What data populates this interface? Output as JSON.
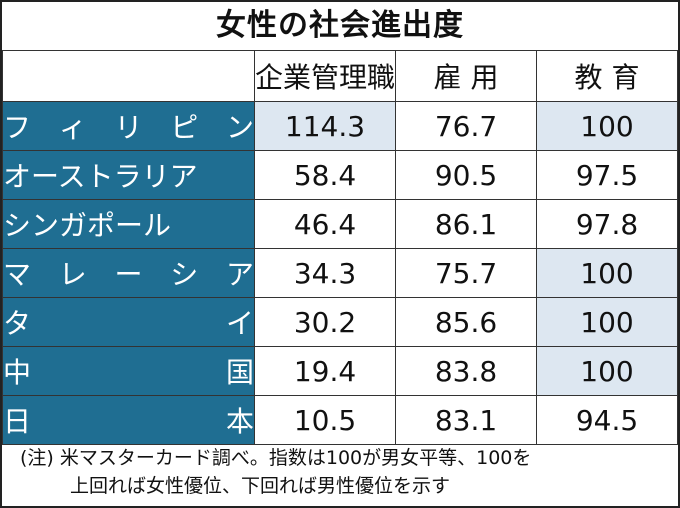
{
  "title": "女性の社会進出度",
  "chart_data": {
    "type": "table",
    "title": "女性の社会進出度",
    "columns": [
      "企業管理職",
      "雇 用",
      "教 育"
    ],
    "rows": [
      {
        "country": "フィリピン",
        "chars": [
          "フ",
          "ィ",
          "リ",
          "ピ",
          "ン"
        ],
        "values": [
          "114.3",
          "76.7",
          "100"
        ],
        "highlight": [
          true,
          false,
          true
        ]
      },
      {
        "country": "オーストラリア",
        "chars": [
          "オーストラリア"
        ],
        "values": [
          "58.4",
          "90.5",
          "97.5"
        ],
        "highlight": [
          false,
          false,
          false
        ]
      },
      {
        "country": "シンガポール",
        "chars": [
          "シンガポール"
        ],
        "values": [
          "46.4",
          "86.1",
          "97.8"
        ],
        "highlight": [
          false,
          false,
          false
        ]
      },
      {
        "country": "マレーシア",
        "chars": [
          "マ",
          "レ",
          "ー",
          "シ",
          "ア"
        ],
        "values": [
          "34.3",
          "75.7",
          "100"
        ],
        "highlight": [
          false,
          false,
          true
        ]
      },
      {
        "country": "タイ",
        "chars": [
          "タ",
          "イ"
        ],
        "values": [
          "30.2",
          "85.6",
          "100"
        ],
        "highlight": [
          false,
          false,
          true
        ]
      },
      {
        "country": "中国",
        "chars": [
          "中",
          "国"
        ],
        "values": [
          "19.4",
          "83.8",
          "100"
        ],
        "highlight": [
          false,
          false,
          true
        ]
      },
      {
        "country": "日本",
        "chars": [
          "日",
          "本"
        ],
        "values": [
          "10.5",
          "83.1",
          "94.5"
        ],
        "highlight": [
          false,
          false,
          false
        ]
      }
    ]
  },
  "note": {
    "line1": "(注) 米マスターカード調べ。指数は100が男女平等、100を",
    "line2": "上回れば女性優位、下回れば男性優位を示す"
  },
  "colors": {
    "country_bg": "#1f6e92",
    "highlight_bg": "#dde7f1",
    "border": "#333333"
  }
}
